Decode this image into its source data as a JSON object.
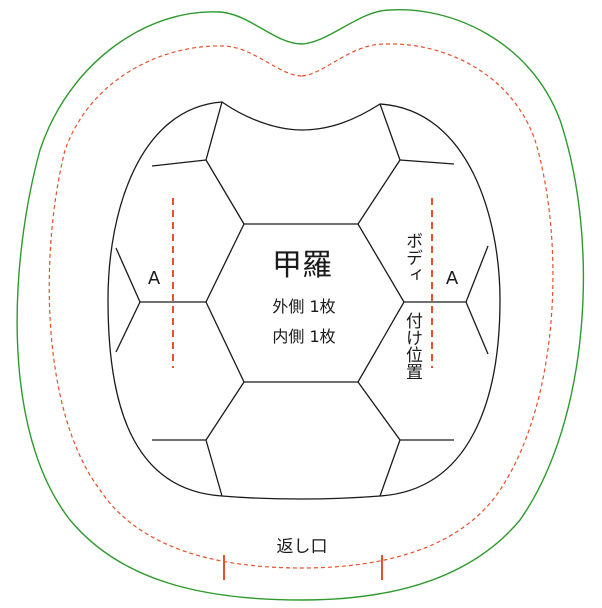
{
  "title": "甲羅",
  "count_outer": "外側 1枚",
  "count_inner": "内側 1枚",
  "label_a_left": "A",
  "label_a_right": "A",
  "body_position_top": "ボディ",
  "body_position_bottom": "付け位置",
  "opening_label": "返し口",
  "colors": {
    "cut_line": "#2e9a2e",
    "seam_line": "#e8502a",
    "mark_line": "#e8502a",
    "pattern_line": "#1a1a1a"
  }
}
